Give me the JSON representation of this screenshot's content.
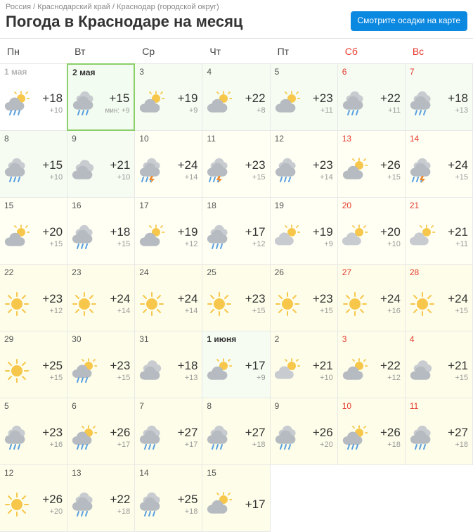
{
  "breadcrumb": {
    "country": "Россия",
    "region": "Краснодарский край",
    "city": "Краснодар (городской округ)"
  },
  "title": "Погода в Краснодаре на месяц",
  "map_button": "Смотрите осадки\nна карте",
  "weekdays": [
    {
      "label": "Пн",
      "weekend": false
    },
    {
      "label": "Вт",
      "weekend": false
    },
    {
      "label": "Ср",
      "weekend": false
    },
    {
      "label": "Чт",
      "weekend": false
    },
    {
      "label": "Пт",
      "weekend": false
    },
    {
      "label": "Сб",
      "weekend": true
    },
    {
      "label": "Вс",
      "weekend": true
    }
  ],
  "colors": {
    "accent": "#0b88e0",
    "weekend_text": "#e63a2f",
    "today_border": "#8bcf6a",
    "bg_today": "#f3fcf0",
    "bg_soon": "#f6fcf2",
    "bg_mid": "#fffff4",
    "bg_far": "#fdfde9",
    "hi_text": "#333333",
    "lo_text": "#9a9a9a",
    "sun": "#f6c74b",
    "cloud": "#c8ccd0",
    "rain": "#5aa0e0",
    "lightning": "#f08a2c"
  },
  "icon_types": [
    "sun",
    "partly",
    "cloud",
    "cloud_rain",
    "cloud_sun_rain",
    "cloud_storm",
    "cloud_sun"
  ],
  "days": [
    {
      "date": "1 мая",
      "bold": true,
      "weekend": false,
      "bg": "past",
      "icon": "cloud_sun_rain",
      "hi": "+18",
      "lo": "+10",
      "lo_prefix": ""
    },
    {
      "date": "2 мая",
      "bold": true,
      "weekend": false,
      "bg": "today",
      "icon": "cloud_rain",
      "hi": "+15",
      "lo": "+9",
      "lo_prefix": "мин: "
    },
    {
      "date": "3",
      "bold": false,
      "weekend": false,
      "bg": "soon",
      "icon": "cloud_sun",
      "hi": "+19",
      "lo": "+9",
      "lo_prefix": ""
    },
    {
      "date": "4",
      "bold": false,
      "weekend": false,
      "bg": "soon",
      "icon": "cloud_sun",
      "hi": "+22",
      "lo": "+8",
      "lo_prefix": ""
    },
    {
      "date": "5",
      "bold": false,
      "weekend": false,
      "bg": "soon",
      "icon": "cloud_sun",
      "hi": "+23",
      "lo": "+11",
      "lo_prefix": ""
    },
    {
      "date": "6",
      "bold": false,
      "weekend": true,
      "bg": "soon",
      "icon": "cloud_rain",
      "hi": "+22",
      "lo": "+11",
      "lo_prefix": ""
    },
    {
      "date": "7",
      "bold": false,
      "weekend": true,
      "bg": "soon",
      "icon": "cloud_rain",
      "hi": "+18",
      "lo": "+13",
      "lo_prefix": ""
    },
    {
      "date": "8",
      "bold": false,
      "weekend": false,
      "bg": "soon",
      "icon": "cloud_rain",
      "hi": "+15",
      "lo": "+10",
      "lo_prefix": ""
    },
    {
      "date": "9",
      "bold": false,
      "weekend": false,
      "bg": "soon",
      "icon": "cloud",
      "hi": "+21",
      "lo": "+10",
      "lo_prefix": ""
    },
    {
      "date": "10",
      "bold": false,
      "weekend": false,
      "bg": "mid",
      "icon": "cloud_storm",
      "hi": "+24",
      "lo": "+14",
      "lo_prefix": ""
    },
    {
      "date": "11",
      "bold": false,
      "weekend": false,
      "bg": "mid",
      "icon": "cloud_storm",
      "hi": "+23",
      "lo": "+15",
      "lo_prefix": ""
    },
    {
      "date": "12",
      "bold": false,
      "weekend": false,
      "bg": "mid",
      "icon": "cloud_rain",
      "hi": "+23",
      "lo": "+14",
      "lo_prefix": ""
    },
    {
      "date": "13",
      "bold": false,
      "weekend": true,
      "bg": "mid",
      "icon": "cloud_sun",
      "hi": "+26",
      "lo": "+15",
      "lo_prefix": ""
    },
    {
      "date": "14",
      "bold": false,
      "weekend": true,
      "bg": "mid",
      "icon": "cloud_storm",
      "hi": "+24",
      "lo": "+15",
      "lo_prefix": ""
    },
    {
      "date": "15",
      "bold": false,
      "weekend": false,
      "bg": "mid",
      "icon": "cloud_sun",
      "hi": "+20",
      "lo": "+15",
      "lo_prefix": ""
    },
    {
      "date": "16",
      "bold": false,
      "weekend": false,
      "bg": "mid",
      "icon": "cloud_rain",
      "hi": "+18",
      "lo": "+15",
      "lo_prefix": ""
    },
    {
      "date": "17",
      "bold": false,
      "weekend": false,
      "bg": "mid",
      "icon": "cloud_sun",
      "hi": "+19",
      "lo": "+12",
      "lo_prefix": ""
    },
    {
      "date": "18",
      "bold": false,
      "weekend": false,
      "bg": "mid",
      "icon": "cloud_rain",
      "hi": "+17",
      "lo": "+12",
      "lo_prefix": ""
    },
    {
      "date": "19",
      "bold": false,
      "weekend": false,
      "bg": "mid",
      "icon": "partly",
      "hi": "+19",
      "lo": "+9",
      "lo_prefix": ""
    },
    {
      "date": "20",
      "bold": false,
      "weekend": true,
      "bg": "mid",
      "icon": "partly",
      "hi": "+20",
      "lo": "+10",
      "lo_prefix": ""
    },
    {
      "date": "21",
      "bold": false,
      "weekend": true,
      "bg": "mid",
      "icon": "partly",
      "hi": "+21",
      "lo": "+11",
      "lo_prefix": ""
    },
    {
      "date": "22",
      "bold": false,
      "weekend": false,
      "bg": "far",
      "icon": "sun",
      "hi": "+23",
      "lo": "+12",
      "lo_prefix": ""
    },
    {
      "date": "23",
      "bold": false,
      "weekend": false,
      "bg": "far",
      "icon": "sun",
      "hi": "+24",
      "lo": "+14",
      "lo_prefix": ""
    },
    {
      "date": "24",
      "bold": false,
      "weekend": false,
      "bg": "far",
      "icon": "sun",
      "hi": "+24",
      "lo": "+14",
      "lo_prefix": ""
    },
    {
      "date": "25",
      "bold": false,
      "weekend": false,
      "bg": "far",
      "icon": "sun",
      "hi": "+23",
      "lo": "+15",
      "lo_prefix": ""
    },
    {
      "date": "26",
      "bold": false,
      "weekend": false,
      "bg": "far",
      "icon": "sun",
      "hi": "+23",
      "lo": "+15",
      "lo_prefix": ""
    },
    {
      "date": "27",
      "bold": false,
      "weekend": true,
      "bg": "far",
      "icon": "sun",
      "hi": "+24",
      "lo": "+16",
      "lo_prefix": ""
    },
    {
      "date": "28",
      "bold": false,
      "weekend": true,
      "bg": "far",
      "icon": "sun",
      "hi": "+24",
      "lo": "+15",
      "lo_prefix": ""
    },
    {
      "date": "29",
      "bold": false,
      "weekend": false,
      "bg": "far",
      "icon": "sun",
      "hi": "+25",
      "lo": "+15",
      "lo_prefix": ""
    },
    {
      "date": "30",
      "bold": false,
      "weekend": false,
      "bg": "far",
      "icon": "cloud_sun_rain",
      "hi": "+23",
      "lo": "+15",
      "lo_prefix": ""
    },
    {
      "date": "31",
      "bold": false,
      "weekend": false,
      "bg": "far",
      "icon": "cloud",
      "hi": "+18",
      "lo": "+13",
      "lo_prefix": ""
    },
    {
      "date": "1 июня",
      "bold": true,
      "weekend": false,
      "bg": "soon",
      "icon": "cloud_sun",
      "hi": "+17",
      "lo": "+9",
      "lo_prefix": ""
    },
    {
      "date": "2",
      "bold": false,
      "weekend": false,
      "bg": "far",
      "icon": "partly",
      "hi": "+21",
      "lo": "+10",
      "lo_prefix": ""
    },
    {
      "date": "3",
      "bold": false,
      "weekend": true,
      "bg": "far",
      "icon": "cloud_sun",
      "hi": "+22",
      "lo": "+12",
      "lo_prefix": ""
    },
    {
      "date": "4",
      "bold": false,
      "weekend": true,
      "bg": "far",
      "icon": "cloud",
      "hi": "+21",
      "lo": "+15",
      "lo_prefix": ""
    },
    {
      "date": "5",
      "bold": false,
      "weekend": false,
      "bg": "far",
      "icon": "cloud_rain",
      "hi": "+23",
      "lo": "+16",
      "lo_prefix": ""
    },
    {
      "date": "6",
      "bold": false,
      "weekend": false,
      "bg": "far",
      "icon": "cloud_sun_rain",
      "hi": "+26",
      "lo": "+17",
      "lo_prefix": ""
    },
    {
      "date": "7",
      "bold": false,
      "weekend": false,
      "bg": "far",
      "icon": "cloud_rain",
      "hi": "+27",
      "lo": "+17",
      "lo_prefix": ""
    },
    {
      "date": "8",
      "bold": false,
      "weekend": false,
      "bg": "far",
      "icon": "cloud_rain",
      "hi": "+27",
      "lo": "+18",
      "lo_prefix": ""
    },
    {
      "date": "9",
      "bold": false,
      "weekend": false,
      "bg": "far",
      "icon": "cloud_rain",
      "hi": "+26",
      "lo": "+20",
      "lo_prefix": ""
    },
    {
      "date": "10",
      "bold": false,
      "weekend": true,
      "bg": "far",
      "icon": "cloud_sun_rain",
      "hi": "+26",
      "lo": "+18",
      "lo_prefix": ""
    },
    {
      "date": "11",
      "bold": false,
      "weekend": true,
      "bg": "far",
      "icon": "cloud_rain",
      "hi": "+27",
      "lo": "+18",
      "lo_prefix": ""
    },
    {
      "date": "12",
      "bold": false,
      "weekend": false,
      "bg": "far",
      "icon": "sun",
      "hi": "+26",
      "lo": "+20",
      "lo_prefix": ""
    },
    {
      "date": "13",
      "bold": false,
      "weekend": false,
      "bg": "far",
      "icon": "cloud_rain",
      "hi": "+22",
      "lo": "+18",
      "lo_prefix": ""
    },
    {
      "date": "14",
      "bold": false,
      "weekend": false,
      "bg": "far",
      "icon": "cloud_rain",
      "hi": "+25",
      "lo": "+18",
      "lo_prefix": ""
    },
    {
      "date": "15",
      "bold": false,
      "weekend": false,
      "bg": "far",
      "icon": "cloud_sun",
      "hi": "+17",
      "lo": "",
      "lo_prefix": ""
    }
  ]
}
